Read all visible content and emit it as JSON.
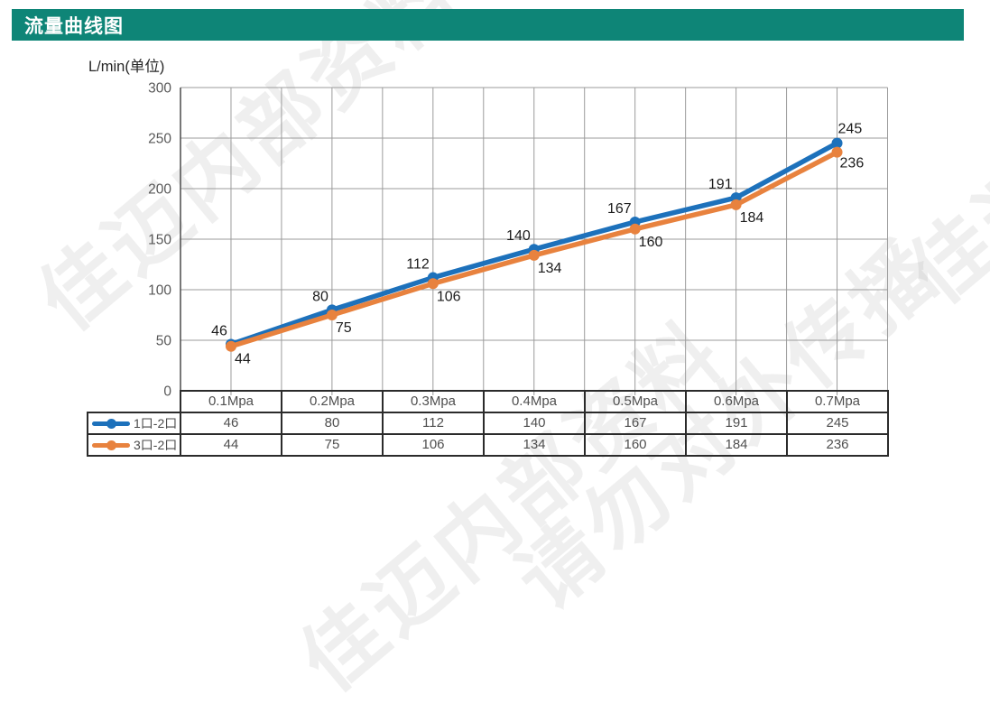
{
  "header": {
    "title": "流量曲线图",
    "bar_color": "#0e8577"
  },
  "chart_data": {
    "type": "line",
    "title": "流量曲线图",
    "unit_label": "L/min(单位)",
    "categories": [
      "0.1Mpa",
      "0.2Mpa",
      "0.3Mpa",
      "0.4Mpa",
      "0.5Mpa",
      "0.6Mpa",
      "0.7Mpa"
    ],
    "series": [
      {
        "name": "1口-2口",
        "color": "#1d71bb",
        "values": [
          46,
          80,
          112,
          140,
          167,
          191,
          245
        ]
      },
      {
        "name": "3口-2口",
        "color": "#e8823e",
        "values": [
          44,
          75,
          106,
          134,
          160,
          184,
          236
        ]
      }
    ],
    "ylim": [
      0,
      300
    ],
    "ytick_step": 50,
    "ytick_labels": [
      "0",
      "50",
      "100",
      "150",
      "200",
      "250",
      "300"
    ],
    "grid": true,
    "legend_position": "table-left",
    "data_labels": true
  },
  "watermarks": {
    "texts": [
      "佳迈内部资料",
      "请勿对外传播",
      "佳迈内部资料",
      "佳迈内部资料"
    ]
  }
}
